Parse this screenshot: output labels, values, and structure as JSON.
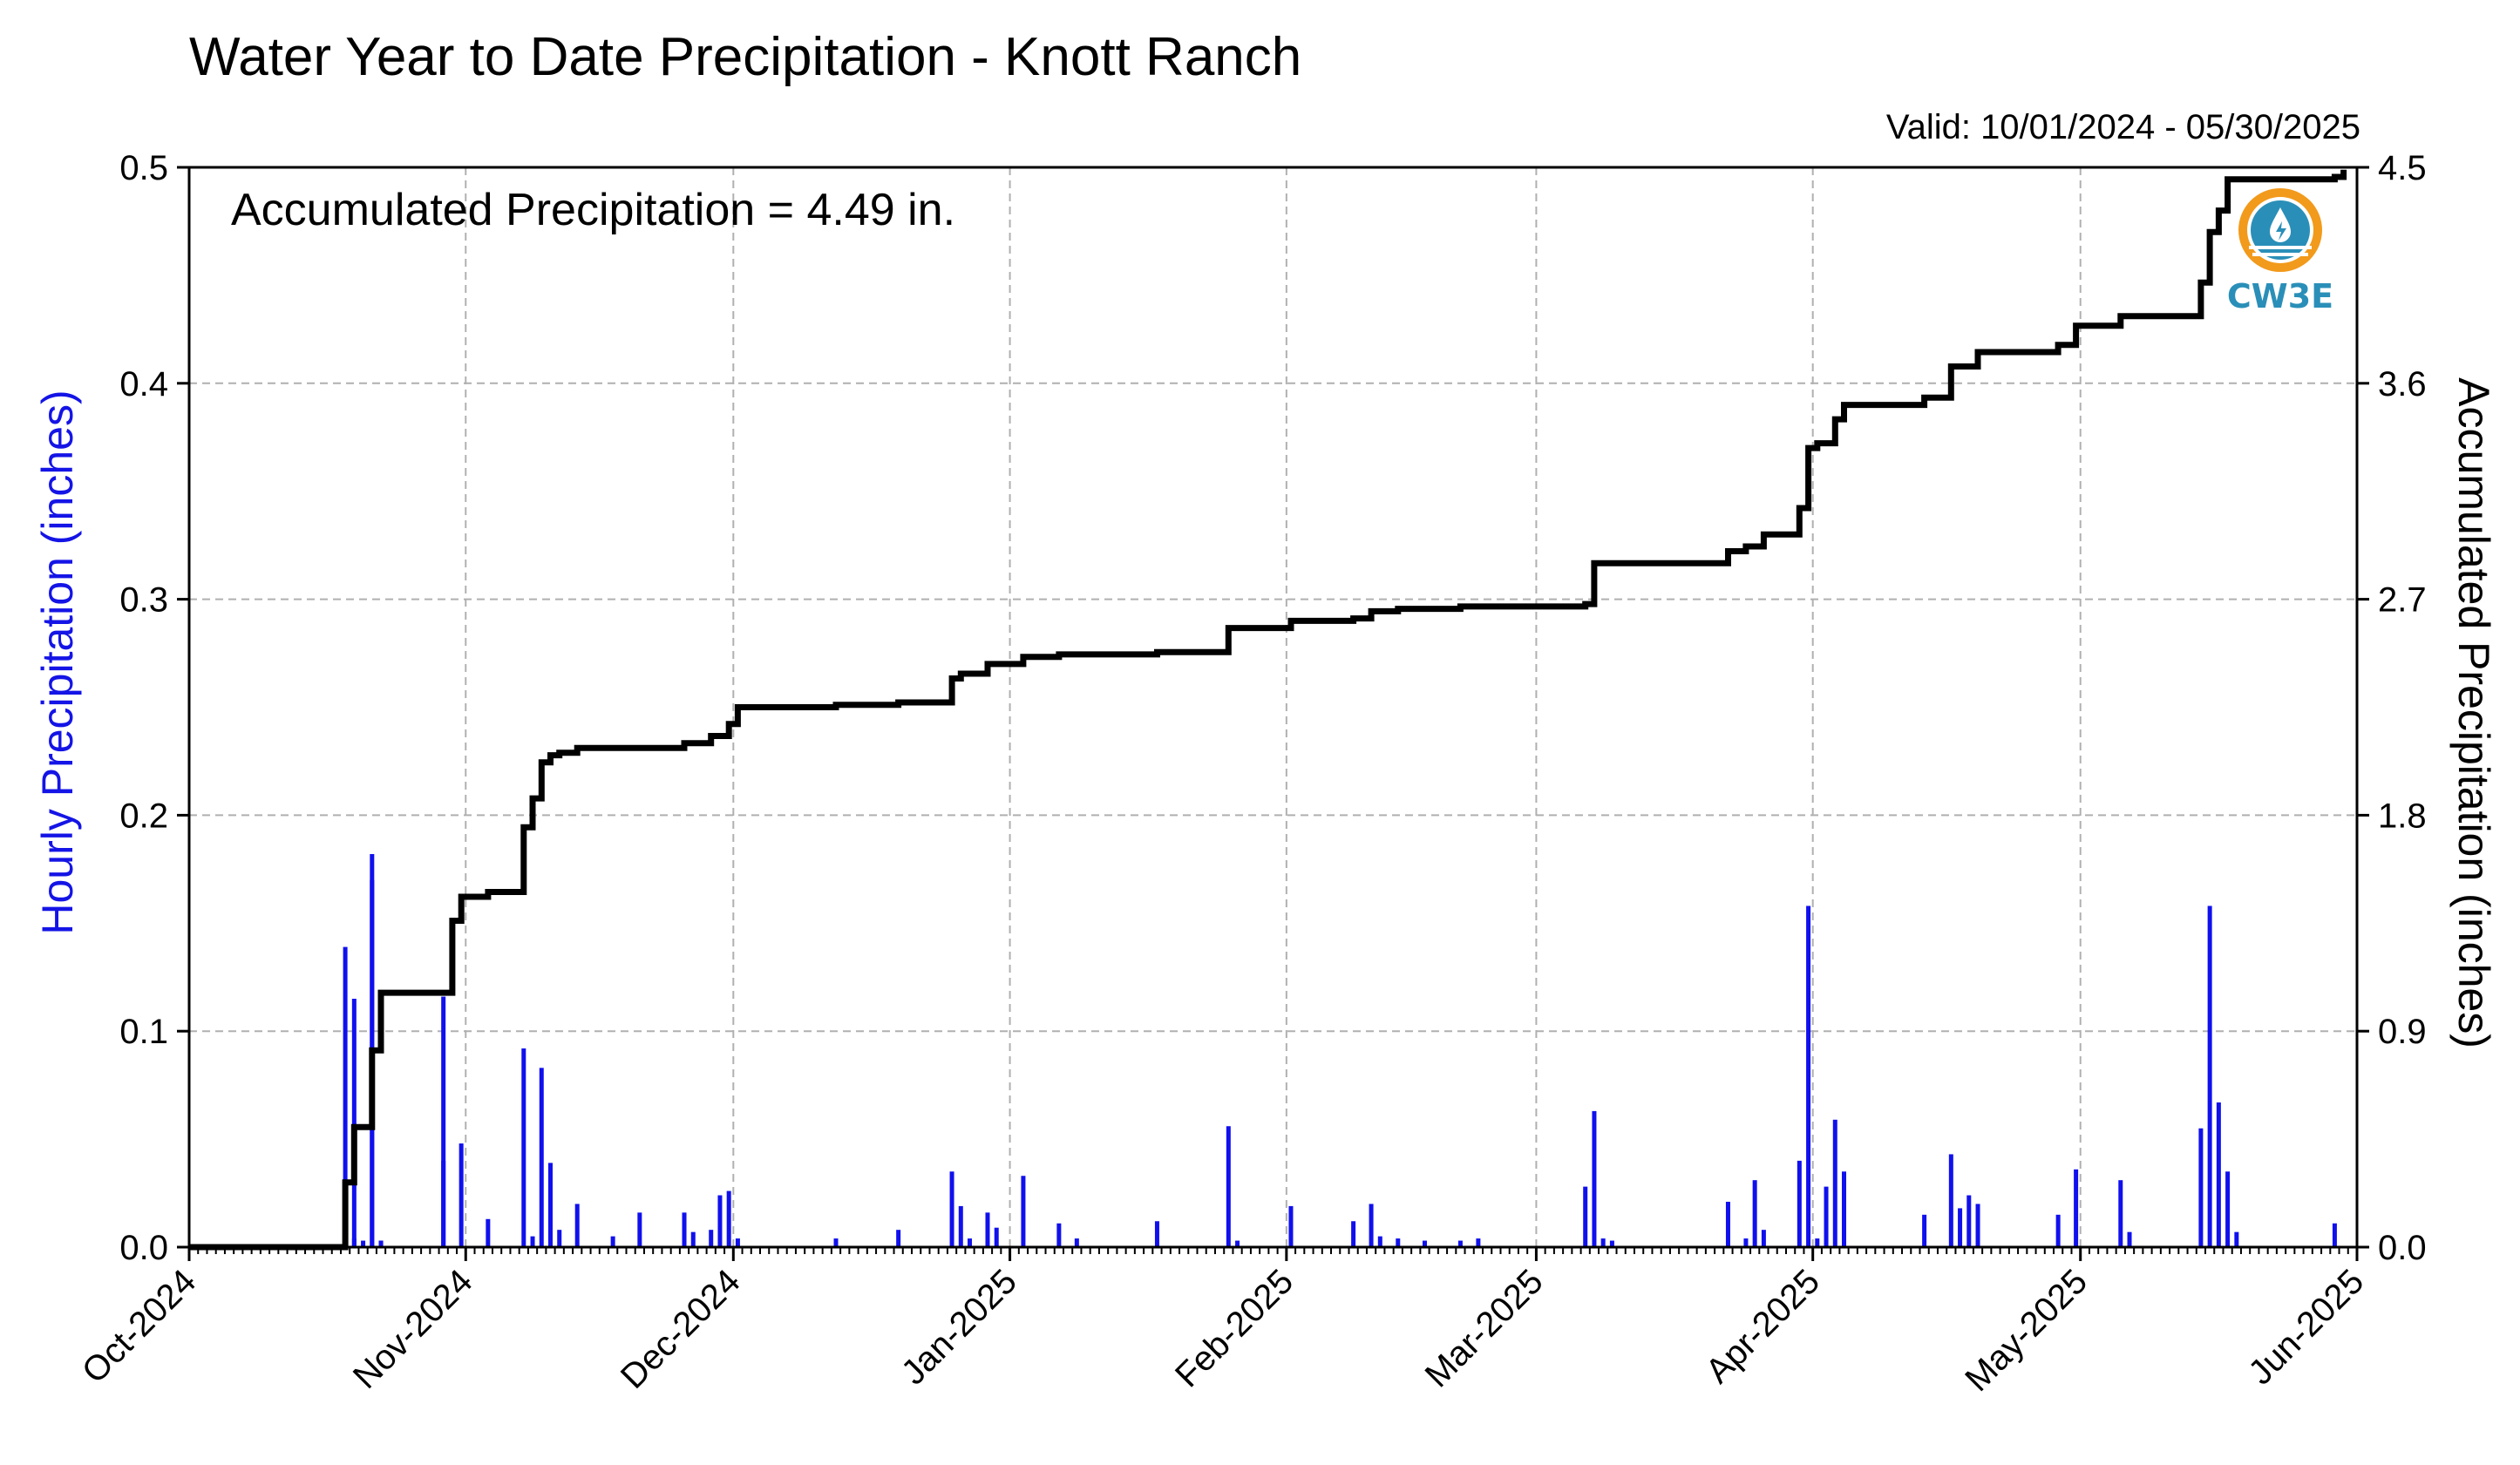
{
  "title": "Water Year to Date Precipitation - Knott Ranch",
  "valid_range": "Valid: 10/01/2024 - 05/30/2025",
  "accumulated_text": "Accumulated Precipitation = 4.49 in.",
  "logo_text": "CW3E",
  "colors": {
    "hourly": "#1010ee",
    "accumulated": "#000000",
    "left_label": "#1414e6",
    "grid": "#b0b0b0",
    "logo": "#2a8fb8",
    "logo_accent": "#f29a1b"
  },
  "chart_data": {
    "type": "bar",
    "title": "Water Year to Date Precipitation - Knott Ranch",
    "grid": true,
    "x_axis": {
      "type": "date",
      "range": [
        "2024-10-01",
        "2025-06-01"
      ],
      "tick_labels": [
        "Oct-2024",
        "Nov-2024",
        "Dec-2024",
        "Jan-2025",
        "Feb-2025",
        "Mar-2025",
        "Apr-2025",
        "May-2025",
        "Jun-2025"
      ],
      "tick_dates": [
        "2024-10-01",
        "2024-11-01",
        "2024-12-01",
        "2025-01-01",
        "2025-02-01",
        "2025-03-01",
        "2025-04-01",
        "2025-05-01",
        "2025-06-01"
      ]
    },
    "y_left": {
      "label": "Hourly Precipitation (inches)",
      "range": [
        0,
        0.5
      ],
      "ticks": [
        "0.0",
        "0.1",
        "0.2",
        "0.3",
        "0.4",
        "0.5"
      ]
    },
    "y_right": {
      "label": "Accumulated Precipitation (inches)",
      "range": [
        0,
        4.5
      ],
      "ticks": [
        "0.0",
        "0.9",
        "1.8",
        "2.7",
        "3.6",
        "4.5"
      ]
    },
    "series": [
      {
        "type": "bar",
        "axis": "left",
        "x": [
          "2024-10-18",
          "2024-10-18",
          "2024-10-19",
          "2024-10-19",
          "2024-10-20",
          "2024-10-21",
          "2024-10-21",
          "2024-10-22",
          "2024-10-22",
          "2024-10-29",
          "2024-10-29",
          "2024-10-31",
          "2024-11-03",
          "2024-11-07",
          "2024-11-08",
          "2024-11-09",
          "2024-11-10",
          "2024-11-10",
          "2024-11-11",
          "2024-11-13",
          "2024-11-17",
          "2024-11-20",
          "2024-11-25",
          "2024-11-26",
          "2024-11-28",
          "2024-11-29",
          "2024-11-30",
          "2024-12-01",
          "2024-12-12",
          "2024-12-19",
          "2024-12-25",
          "2024-12-26",
          "2024-12-27",
          "2024-12-29",
          "2024-12-30",
          "2025-01-02",
          "2025-01-06",
          "2025-01-08",
          "2025-01-17",
          "2025-01-25",
          "2025-01-26",
          "2025-02-01",
          "2025-02-08",
          "2025-02-10",
          "2025-02-11",
          "2025-02-13",
          "2025-02-16",
          "2025-02-20",
          "2025-02-22",
          "2025-03-06",
          "2025-03-07",
          "2025-03-08",
          "2025-03-09",
          "2025-03-22",
          "2025-03-24",
          "2025-03-25",
          "2025-03-26",
          "2025-03-30",
          "2025-03-31",
          "2025-04-01",
          "2025-04-02",
          "2025-04-03",
          "2025-04-04",
          "2025-04-13",
          "2025-04-16",
          "2025-04-17",
          "2025-04-18",
          "2025-04-19",
          "2025-04-28",
          "2025-04-30",
          "2025-05-05",
          "2025-05-06",
          "2025-05-14",
          "2025-05-15",
          "2025-05-16",
          "2025-05-17",
          "2025-05-18",
          "2025-05-29"
        ],
        "values": [
          0.031,
          0.139,
          0.115,
          0.004,
          0.003,
          0.17,
          0.182,
          0.003,
          0.003,
          0.116,
          0.04,
          0.048,
          0.013,
          0.092,
          0.005,
          0.083,
          0.039,
          0.02,
          0.008,
          0.02,
          0.005,
          0.016,
          0.016,
          0.007,
          0.008,
          0.024,
          0.026,
          0.004,
          0.004,
          0.008,
          0.035,
          0.019,
          0.004,
          0.016,
          0.009,
          0.033,
          0.011,
          0.004,
          0.012,
          0.056,
          0.003,
          0.019,
          0.012,
          0.02,
          0.005,
          0.004,
          0.003,
          0.003,
          0.004,
          0.028,
          0.063,
          0.004,
          0.003,
          0.021,
          0.004,
          0.031,
          0.008,
          0.04,
          0.158,
          0.004,
          0.028,
          0.059,
          0.035,
          0.015,
          0.043,
          0.018,
          0.024,
          0.02,
          0.015,
          0.036,
          0.031,
          0.007,
          0.055,
          0.158,
          0.067,
          0.035,
          0.007,
          0.011
        ]
      },
      {
        "type": "step-line",
        "axis": "right",
        "x": [
          "2024-10-01",
          "2024-10-18",
          "2024-10-18",
          "2024-10-19",
          "2024-10-21",
          "2024-10-21",
          "2024-10-22",
          "2024-10-29",
          "2024-10-30",
          "2024-10-31",
          "2024-11-03",
          "2024-11-07",
          "2024-11-08",
          "2024-11-09",
          "2024-11-10",
          "2024-11-11",
          "2024-11-13",
          "2024-11-17",
          "2024-11-25",
          "2024-11-28",
          "2024-11-30",
          "2024-12-01",
          "2024-12-12",
          "2024-12-19",
          "2024-12-25",
          "2024-12-26",
          "2024-12-29",
          "2025-01-02",
          "2025-01-06",
          "2025-01-17",
          "2025-01-25",
          "2025-02-01",
          "2025-02-08",
          "2025-02-10",
          "2025-02-13",
          "2025-02-20",
          "2025-03-06",
          "2025-03-07",
          "2025-03-22",
          "2025-03-24",
          "2025-03-26",
          "2025-03-30",
          "2025-03-31",
          "2025-04-01",
          "2025-04-03",
          "2025-04-04",
          "2025-04-13",
          "2025-04-16",
          "2025-04-19",
          "2025-04-28",
          "2025-04-30",
          "2025-05-05",
          "2025-05-14",
          "2025-05-15",
          "2025-05-16",
          "2025-05-17",
          "2025-05-29",
          "2025-05-30"
        ],
        "values": [
          0.0,
          0.05,
          0.27,
          0.5,
          0.55,
          0.82,
          1.06,
          1.06,
          1.36,
          1.46,
          1.48,
          1.75,
          1.87,
          2.02,
          2.05,
          2.06,
          2.08,
          2.08,
          2.1,
          2.13,
          2.18,
          2.25,
          2.26,
          2.27,
          2.37,
          2.39,
          2.43,
          2.46,
          2.47,
          2.48,
          2.58,
          2.61,
          2.62,
          2.65,
          2.66,
          2.67,
          2.68,
          2.85,
          2.9,
          2.92,
          2.97,
          3.08,
          3.33,
          3.35,
          3.45,
          3.51,
          3.54,
          3.67,
          3.73,
          3.76,
          3.84,
          3.88,
          4.02,
          4.23,
          4.32,
          4.45,
          4.46,
          4.49
        ]
      }
    ]
  }
}
